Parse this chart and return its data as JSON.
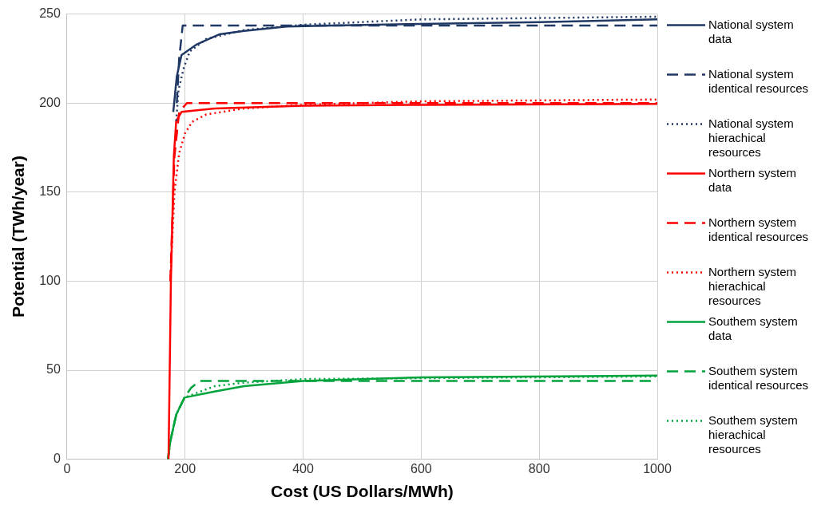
{
  "chart_data": {
    "type": "line",
    "xlabel": "Cost (US Dollars/MWh)",
    "ylabel": "Potential (TWh/year)",
    "xlim": [
      0,
      1000
    ],
    "xticks": [
      0,
      200,
      400,
      600,
      800,
      1000
    ],
    "ylim": [
      0,
      250
    ],
    "yticks": [
      0,
      50,
      100,
      150,
      200,
      250
    ],
    "grid": true,
    "legend": "right",
    "marker": "none",
    "series": [
      {
        "name": "National system data",
        "color": "#1f3864",
        "line_style": "solid",
        "x": [
          180,
          186,
          194,
          220,
          258,
          300,
          372,
          450,
          600,
          800,
          1000
        ],
        "values": [
          195,
          215,
          227,
          233,
          238.6,
          240.5,
          243,
          243.5,
          244.5,
          245.5,
          247
        ]
      },
      {
        "name": "National system identical resources",
        "color": "#1f3864",
        "line_style": "dashed",
        "x": [
          186,
          190,
          196,
          300,
          600,
          1000
        ],
        "values": [
          200,
          225,
          243.5,
          243.5,
          243.5,
          243.5
        ]
      },
      {
        "name": "National system hierachical resources",
        "color": "#1f3864",
        "line_style": "dotted",
        "x": [
          185,
          189,
          198,
          208,
          236,
          300,
          400,
          600,
          1000
        ],
        "values": [
          190,
          207.6,
          220,
          229,
          236,
          241,
          244,
          247,
          248.5
        ]
      },
      {
        "name": "Northern system data",
        "color": "#ff0000",
        "line_style": "solid",
        "x": [
          172,
          176,
          181,
          185,
          194,
          250,
          400,
          600,
          1000
        ],
        "values": [
          0,
          100,
          170,
          190,
          195,
          197,
          198.5,
          199,
          199.5
        ]
      },
      {
        "name": "Northern system identical resources",
        "color": "#ff0000",
        "line_style": "dashed",
        "x": [
          175,
          182,
          190,
          203,
          400,
          1000
        ],
        "values": [
          100,
          170,
          195,
          200,
          200,
          200
        ]
      },
      {
        "name": "Northern system hierachical resources",
        "color": "#ff0000",
        "line_style": "dotted",
        "x": [
          175,
          182,
          190,
          200,
          212,
          236,
          300,
          400,
          600,
          1000
        ],
        "values": [
          100,
          150,
          172,
          183,
          189.5,
          193.6,
          197,
          199,
          201,
          202
        ]
      },
      {
        "name": "Southem system data",
        "color": "#00a33c",
        "line_style": "solid",
        "x": [
          171,
          175,
          185,
          199,
          250,
          300,
          400,
          600,
          1000
        ],
        "values": [
          0,
          10,
          25,
          34.6,
          38,
          41,
          44,
          46,
          47
        ]
      },
      {
        "name": "Southem system identical resources",
        "color": "#00a33c",
        "line_style": "dashed",
        "x": [
          171,
          175,
          185,
          199,
          210,
          225,
          300,
          600,
          1000
        ],
        "values": [
          0,
          10,
          25,
          34.6,
          40,
          44,
          44,
          44,
          44
        ]
      },
      {
        "name": "Southem system hierachical resources",
        "color": "#00a33c",
        "line_style": "dotted",
        "x": [
          171,
          175,
          185,
          199,
          210,
          250,
          300,
          400,
          1000
        ],
        "values": [
          0,
          10,
          25,
          34.6,
          36,
          41,
          43,
          45,
          46.5
        ]
      }
    ]
  }
}
